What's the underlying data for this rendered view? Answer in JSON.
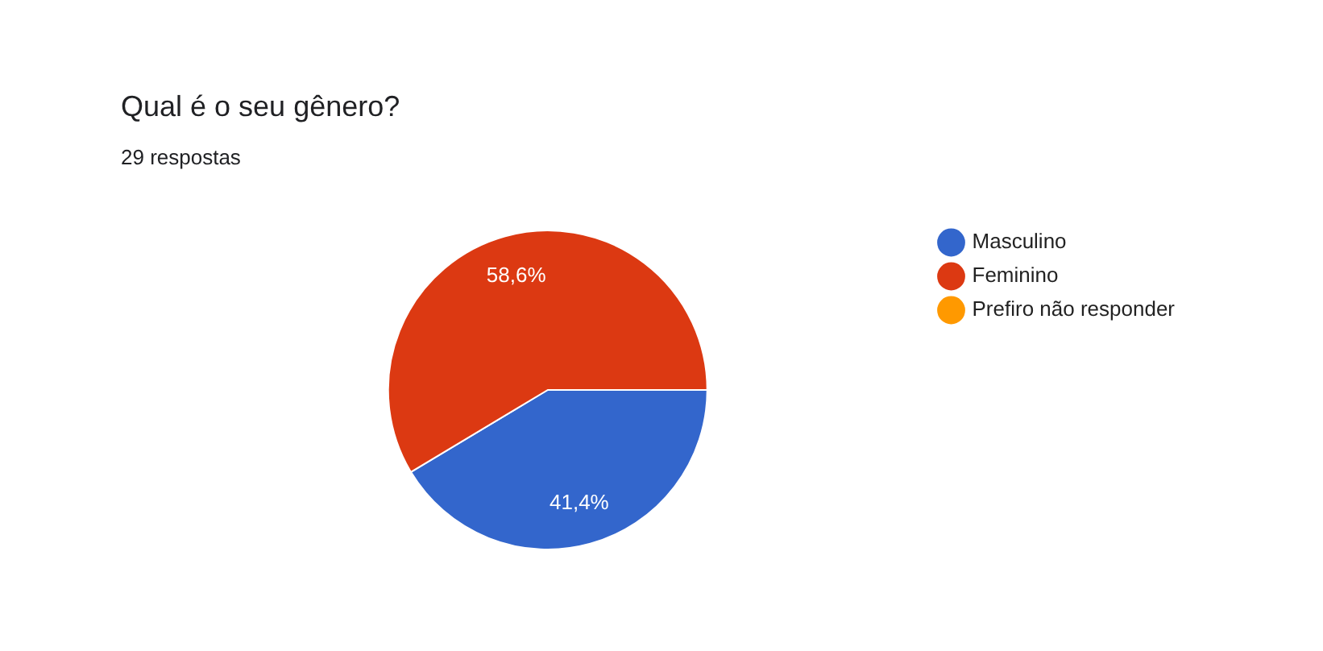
{
  "chart_data": {
    "type": "pie",
    "title": "Qual é o seu gênero?",
    "subtitle": "29 respostas",
    "categories": [
      "Masculino",
      "Feminino",
      "Prefiro não responder"
    ],
    "values": [
      41.4,
      58.6,
      0
    ],
    "colors": [
      "#3366cc",
      "#dc3912",
      "#ff9900"
    ],
    "value_labels": [
      "41,4%",
      "58,6%",
      null
    ],
    "legend": "right"
  }
}
